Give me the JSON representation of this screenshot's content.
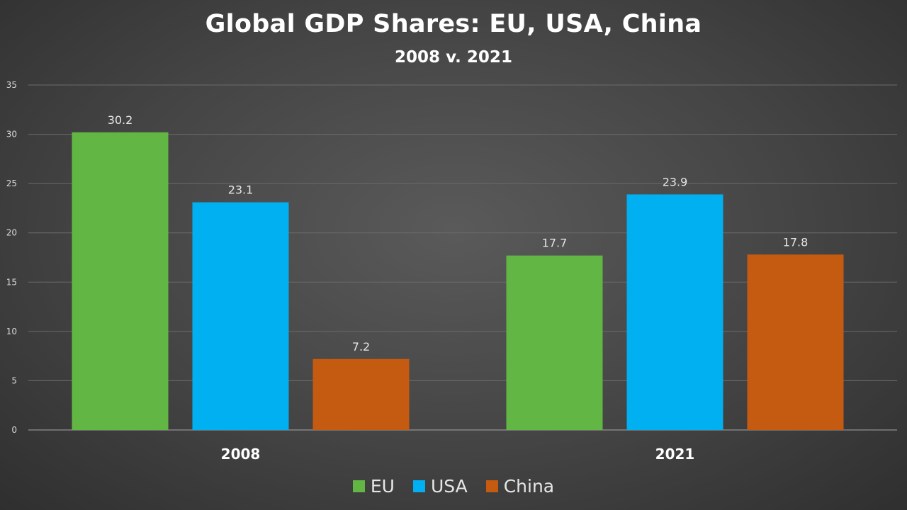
{
  "chart_data": {
    "type": "bar",
    "title": "Global GDP Shares: EU, USA, China",
    "subtitle": "2008 v. 2021",
    "categories": [
      "2008",
      "2021"
    ],
    "series": [
      {
        "name": "EU",
        "values": [
          30.2,
          17.7
        ],
        "color": "#62b744"
      },
      {
        "name": "USA",
        "values": [
          23.1,
          23.9
        ],
        "color": "#00b0f0"
      },
      {
        "name": "China",
        "values": [
          7.2,
          17.8
        ],
        "color": "#c55a11"
      }
    ],
    "data_labels": [
      [
        "30.2",
        "17.7"
      ],
      [
        "23.1",
        "23.9"
      ],
      [
        "7.2",
        "17.8"
      ]
    ],
    "y_ticks": [
      "0",
      "5",
      "10",
      "15",
      "20",
      "25",
      "30",
      "35"
    ],
    "ylim": [
      0,
      35
    ],
    "grid": true,
    "legend_position": "bottom"
  }
}
